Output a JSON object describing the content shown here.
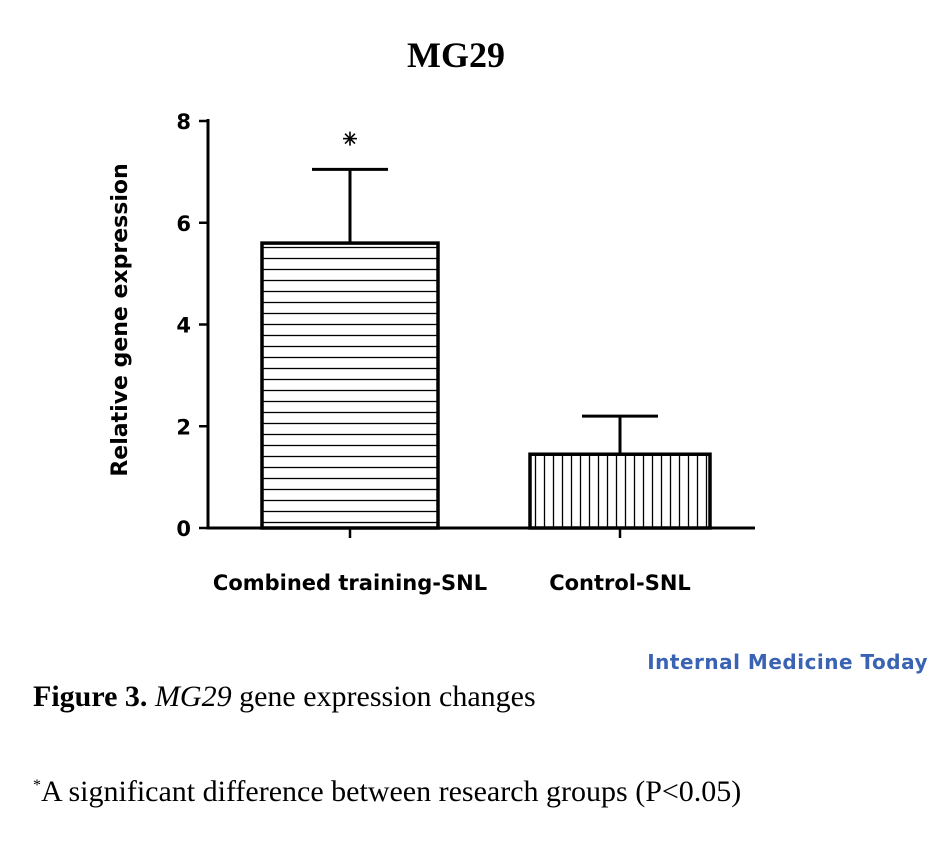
{
  "chart_data": {
    "type": "bar",
    "title": "MG29",
    "ylabel": "Relative gene expression",
    "xlabel": "",
    "categories": [
      "Combined training-SNL",
      "Control-SNL"
    ],
    "values": [
      5.6,
      1.45
    ],
    "error_upper": [
      7.05,
      2.2
    ],
    "ylim": [
      0,
      8
    ],
    "yticks": [
      "0",
      "2",
      "4",
      "6",
      "8"
    ],
    "significance_markers": [
      "*",
      ""
    ],
    "bar_patterns": [
      "horizontal-lines",
      "vertical-lines"
    ],
    "grid": false
  },
  "watermark": "Internal Medicine Today",
  "caption": {
    "label": "Figure 3.",
    "gene": "MG29",
    "text": " gene expression changes"
  },
  "footnote": {
    "marker": "*",
    "text": "A significant difference between research groups (P<0.05)"
  },
  "colors": {
    "ink": "#000000",
    "watermark": "#3b63b3"
  }
}
